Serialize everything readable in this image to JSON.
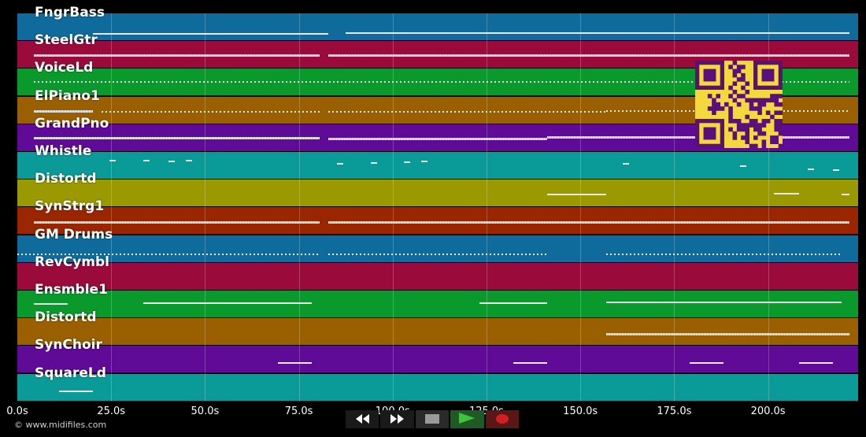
{
  "tracks": [
    {
      "name": "FngrBass",
      "color": "#0e6b9b"
    },
    {
      "name": "SteelGtr",
      "color": "#9a0b3b"
    },
    {
      "name": "VoiceLd",
      "color": "#0a9a2c"
    },
    {
      "name": "ElPiano1",
      "color": "#9a6000"
    },
    {
      "name": "GrandPno",
      "color": "#600a98"
    },
    {
      "name": "Whistle",
      "color": "#0a9a98"
    },
    {
      "name": "Distortd",
      "color": "#9a9a00"
    },
    {
      "name": "SynStrg1",
      "color": "#9a2600"
    },
    {
      "name": "GM Drums",
      "color": "#0e6b9b"
    },
    {
      "name": "RevCymbl",
      "color": "#9a0b3b"
    },
    {
      "name": "Ensmble1",
      "color": "#0a9a2c"
    },
    {
      "name": "Distortd",
      "color": "#9a6000"
    },
    {
      "name": "SynChoir",
      "color": "#600a98"
    },
    {
      "name": "SquareLd",
      "color": "#0a9a98"
    }
  ],
  "time_axis": {
    "ticks": [
      "0.0s",
      "25.0s",
      "50.0s",
      "75.0s",
      "100.0s",
      "125.0s",
      "150.0s",
      "175.0s",
      "200.0s"
    ],
    "seconds": [
      0,
      25,
      50,
      75,
      100,
      125,
      150,
      175,
      200
    ],
    "max_seconds": 224
  },
  "credit": "© www.midifiles.com",
  "transport": {
    "buttons": [
      {
        "name": "rewind",
        "icon": "rewind-icon",
        "color": "#ffffff"
      },
      {
        "name": "fast-forward",
        "icon": "fast-forward-icon",
        "color": "#ffffff"
      },
      {
        "name": "stop",
        "icon": "stop-icon",
        "color": "#9a9a9a"
      },
      {
        "name": "play",
        "icon": "play-icon",
        "color": "#3cc43c"
      },
      {
        "name": "record",
        "icon": "record-icon",
        "color": "#d02020"
      }
    ]
  },
  "qr_code": {
    "fg": "#5a1078",
    "bg": "#f3d93d"
  }
}
